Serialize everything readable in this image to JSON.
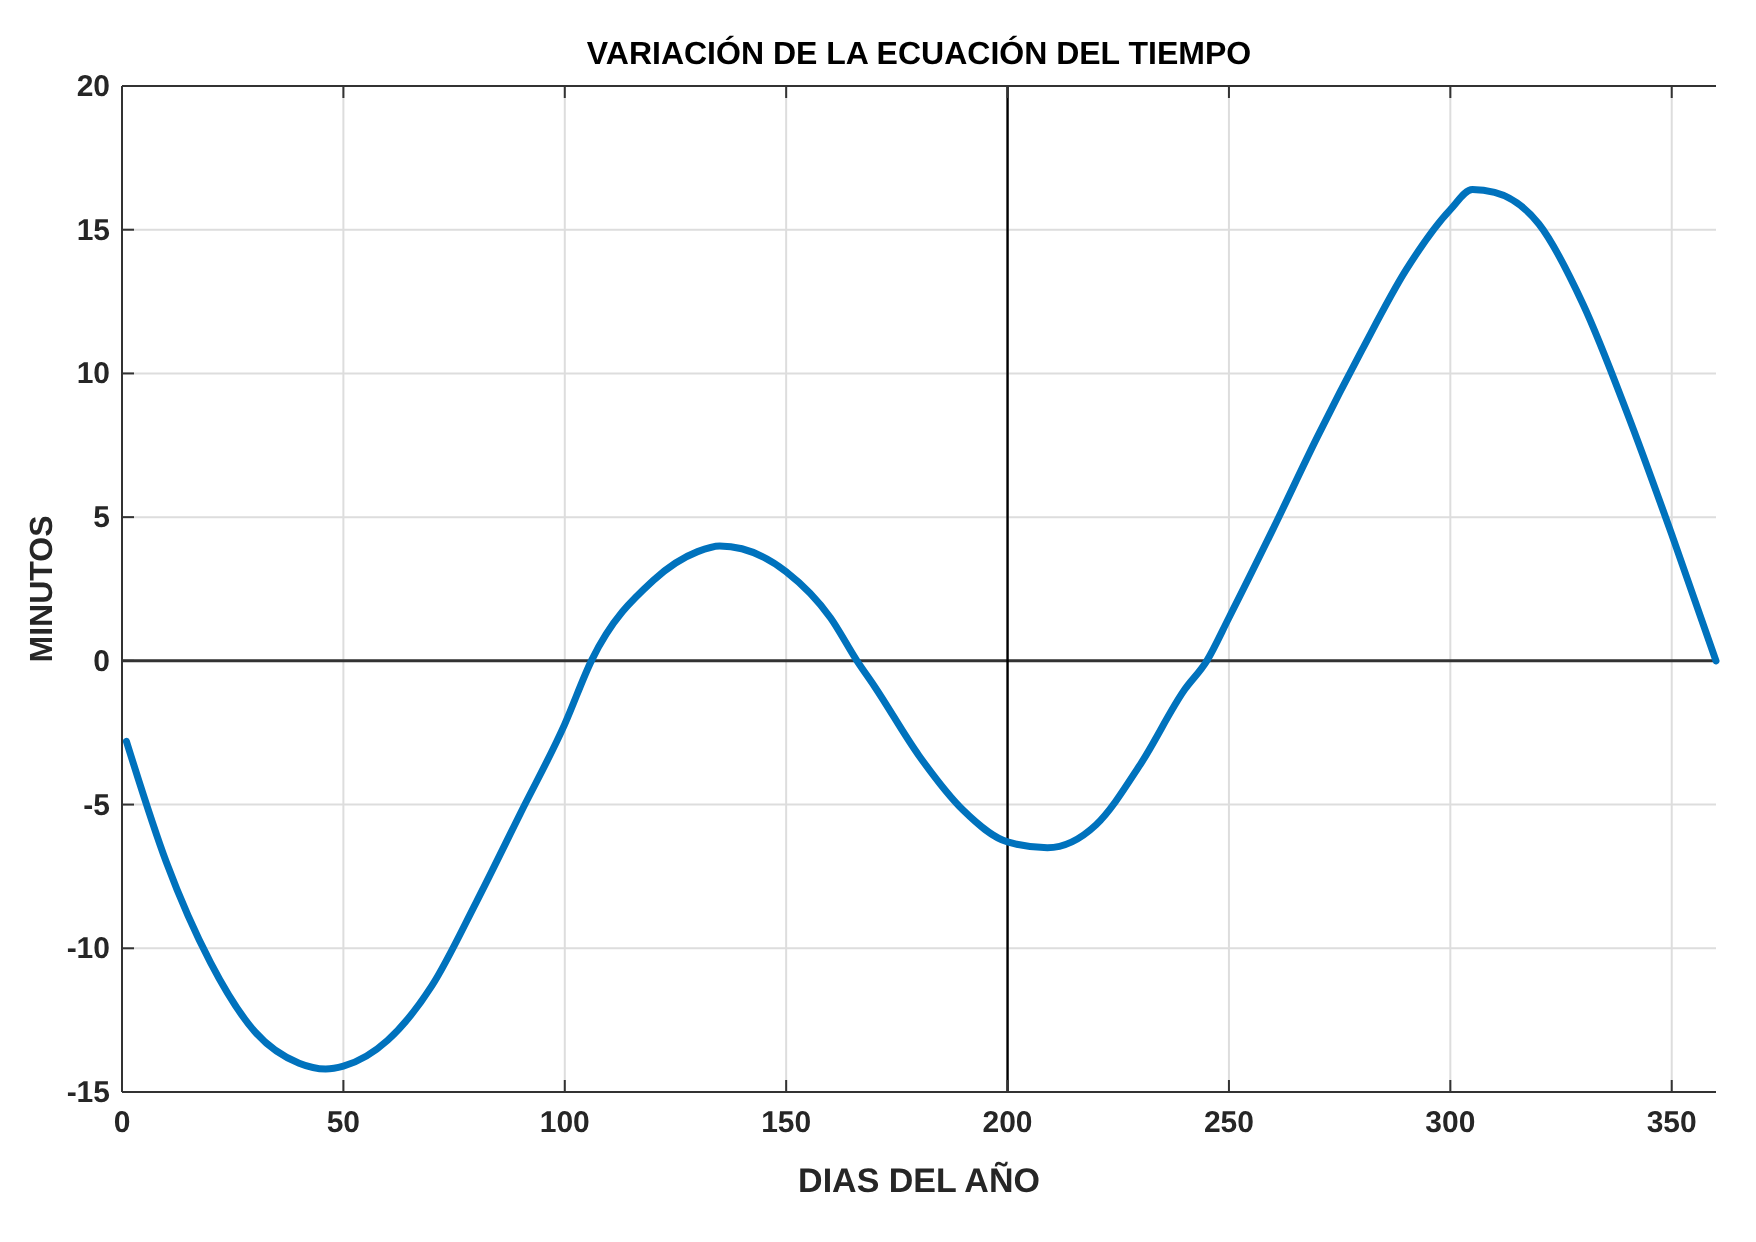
{
  "chart_data": {
    "type": "line",
    "title": "VARIACIÓN DE LA ECUACIÓN DEL TIEMPO",
    "xlabel": "DIAS DEL AÑO",
    "ylabel": "MINUTOS",
    "xlim": [
      0,
      360
    ],
    "xticks": [
      0,
      50,
      100,
      150,
      200,
      250,
      300,
      350
    ],
    "ylim": [
      -15,
      20
    ],
    "yticks": [
      -15,
      -10,
      -5,
      0,
      5,
      10,
      15,
      20
    ],
    "grid": true,
    "ref_lines": [
      {
        "axis": "y",
        "value": 0,
        "color": "#333333"
      },
      {
        "axis": "x",
        "value": 200,
        "color": "#000000"
      }
    ],
    "series": [
      {
        "color": "#0072bd",
        "x": [
          1,
          10,
          20,
          30,
          40,
          46,
          50,
          60,
          70,
          80,
          90,
          100,
          106,
          120,
          130,
          135,
          140,
          150,
          160,
          166,
          170,
          180,
          190,
          200,
          209,
          220,
          230,
          240,
          245,
          250,
          260,
          270,
          280,
          290,
          300,
          305,
          310,
          320,
          330,
          340,
          350,
          360
        ],
        "values": [
          -2.8,
          -7.0,
          -10.5,
          -12.9,
          -14.0,
          -14.2,
          -14.1,
          -13.2,
          -11.3,
          -8.4,
          -5.3,
          -2.2,
          0,
          2.8,
          3.8,
          4.0,
          3.9,
          3.1,
          1.5,
          0,
          -0.9,
          -3.3,
          -5.2,
          -6.3,
          -6.5,
          -5.7,
          -3.6,
          -1.0,
          0,
          1.5,
          4.6,
          7.8,
          10.8,
          13.6,
          15.7,
          16.4,
          16.3,
          15.2,
          12.4,
          8.6,
          4.4,
          0
        ]
      }
    ]
  }
}
